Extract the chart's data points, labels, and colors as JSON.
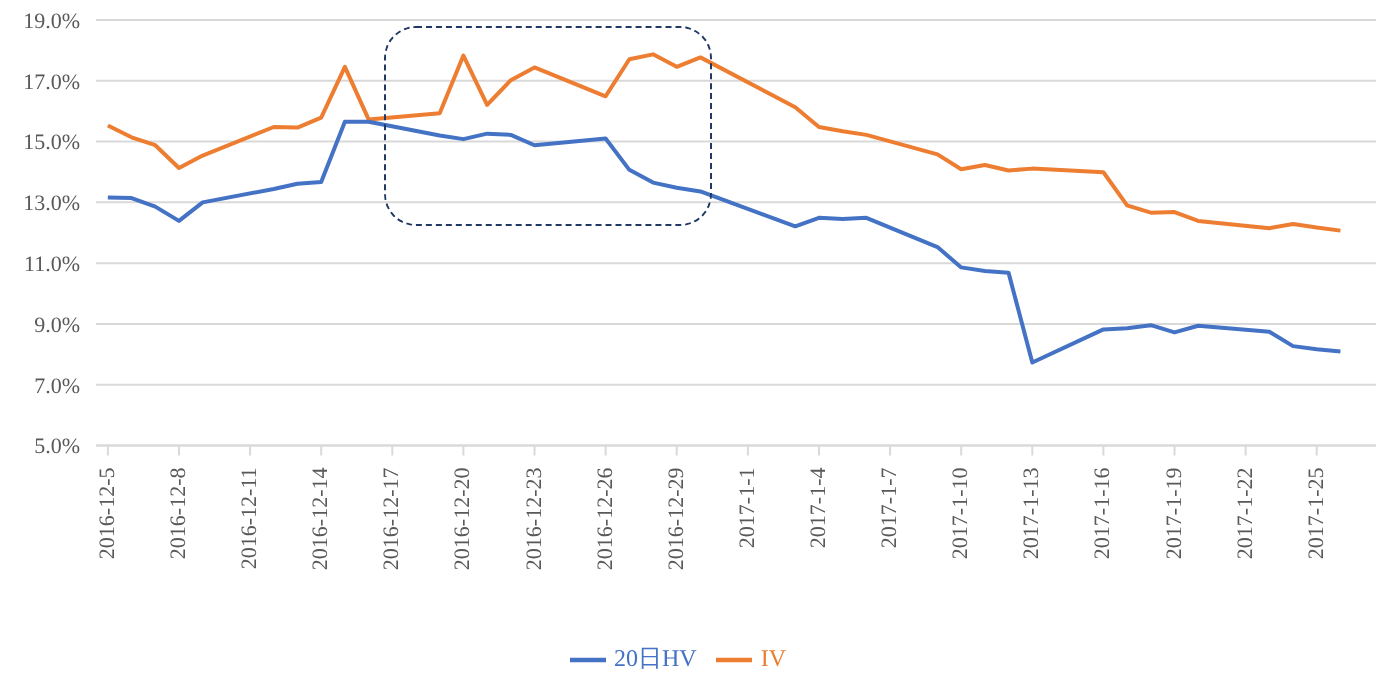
{
  "chart_data": {
    "type": "line",
    "x": [
      "2016-12-05",
      "2016-12-06",
      "2016-12-07",
      "2016-12-08",
      "2016-12-09",
      "2016-12-12",
      "2016-12-13",
      "2016-12-14",
      "2016-12-15",
      "2016-12-16",
      "2016-12-19",
      "2016-12-20",
      "2016-12-21",
      "2016-12-22",
      "2016-12-23",
      "2016-12-26",
      "2016-12-27",
      "2016-12-28",
      "2016-12-29",
      "2016-12-30",
      "2017-01-03",
      "2017-01-04",
      "2017-01-05",
      "2017-01-06",
      "2017-01-09",
      "2017-01-10",
      "2017-01-11",
      "2017-01-12",
      "2017-01-13",
      "2017-01-16",
      "2017-01-17",
      "2017-01-18",
      "2017-01-19",
      "2017-01-20",
      "2017-01-23",
      "2017-01-24",
      "2017-01-25",
      "2017-01-26"
    ],
    "series": [
      {
        "name": "IV",
        "color": "#ed7d31",
        "values": [
          15.53,
          15.14,
          14.88,
          14.13,
          14.54,
          15.48,
          15.46,
          15.79,
          17.46,
          15.73,
          15.93,
          17.83,
          16.21,
          17.02,
          17.44,
          16.49,
          17.71,
          17.87,
          17.46,
          17.77,
          16.13,
          15.48,
          15.34,
          15.22,
          14.58,
          14.09,
          14.23,
          14.05,
          14.11,
          13.99,
          12.9,
          12.66,
          12.68,
          12.39,
          12.15,
          12.29,
          12.17,
          12.07
        ]
      },
      {
        "name": "20日HV",
        "color": "#4472c4",
        "values": [
          13.16,
          13.14,
          12.86,
          12.39,
          13.0,
          13.44,
          13.61,
          13.67,
          15.65,
          15.65,
          15.2,
          15.08,
          15.26,
          15.22,
          14.88,
          15.1,
          14.07,
          13.65,
          13.48,
          13.36,
          12.21,
          12.49,
          12.45,
          12.49,
          11.53,
          10.86,
          10.74,
          10.68,
          7.73,
          8.82,
          8.86,
          8.96,
          8.72,
          8.94,
          8.74,
          8.27,
          8.17,
          8.09
        ]
      }
    ],
    "xlim": [
      "2016-12-04T12:00",
      "2017-01-27T12:00"
    ],
    "xticks": [
      {
        "value": "2016-12-05",
        "label": "2016-12-5"
      },
      {
        "value": "2016-12-08",
        "label": "2016-12-8"
      },
      {
        "value": "2016-12-11",
        "label": "2016-12-11"
      },
      {
        "value": "2016-12-14",
        "label": "2016-12-14"
      },
      {
        "value": "2016-12-17",
        "label": "2016-12-17"
      },
      {
        "value": "2016-12-20",
        "label": "2016-12-20"
      },
      {
        "value": "2016-12-23",
        "label": "2016-12-23"
      },
      {
        "value": "2016-12-26",
        "label": "2016-12-26"
      },
      {
        "value": "2016-12-29",
        "label": "2016-12-29"
      },
      {
        "value": "2017-01-01",
        "label": "2017-1-1"
      },
      {
        "value": "2017-01-04",
        "label": "2017-1-4"
      },
      {
        "value": "2017-01-07",
        "label": "2017-1-7"
      },
      {
        "value": "2017-01-10",
        "label": "2017-1-10"
      },
      {
        "value": "2017-01-13",
        "label": "2017-1-13"
      },
      {
        "value": "2017-01-16",
        "label": "2017-1-16"
      },
      {
        "value": "2017-01-19",
        "label": "2017-1-19"
      },
      {
        "value": "2017-01-22",
        "label": "2017-1-22"
      },
      {
        "value": "2017-01-25",
        "label": "2017-1-25"
      }
    ],
    "ylim": [
      5,
      19
    ],
    "yticks": [
      {
        "value": 5,
        "label": "5.0%"
      },
      {
        "value": 7,
        "label": "7.0%"
      },
      {
        "value": 9,
        "label": "9.0%"
      },
      {
        "value": 11,
        "label": "11.0%"
      },
      {
        "value": 13,
        "label": "13.0%"
      },
      {
        "value": 15,
        "label": "15.0%"
      },
      {
        "value": 17,
        "label": "17.0%"
      },
      {
        "value": 19,
        "label": "19.0%"
      }
    ],
    "grid": "y",
    "legend": "bottom",
    "marker": "none",
    "line_style": "solid"
  }
}
